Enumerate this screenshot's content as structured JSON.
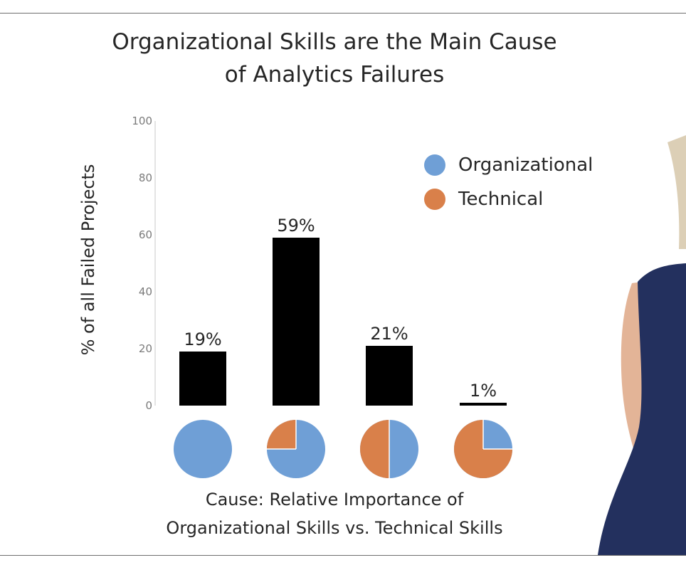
{
  "chart_data": {
    "type": "bar",
    "title": [
      "Organizational Skills are the Main Cause",
      "of Analytics Failures"
    ],
    "ylabel": "% of all Failed Projects",
    "xlabel": [
      "Cause: Relative Importance of",
      "Organizational Skills vs. Technical Skills"
    ],
    "ylim": [
      0,
      100
    ],
    "yticks": [
      0,
      20,
      40,
      60,
      80,
      100
    ],
    "values": [
      19,
      59,
      21,
      1
    ],
    "value_labels": [
      "19%",
      "59%",
      "21%",
      "1%"
    ],
    "category_mix": [
      {
        "organizational": 1.0,
        "technical": 0.0
      },
      {
        "organizational": 0.75,
        "technical": 0.25
      },
      {
        "organizational": 0.5,
        "technical": 0.5
      },
      {
        "organizational": 0.25,
        "technical": 0.75
      }
    ],
    "legend": [
      {
        "name": "Organizational",
        "color": "#6f9fd6"
      },
      {
        "name": "Technical",
        "color": "#d9804a"
      }
    ],
    "legend_position": "top-right",
    "bar_color": "#000000",
    "grid": false
  }
}
